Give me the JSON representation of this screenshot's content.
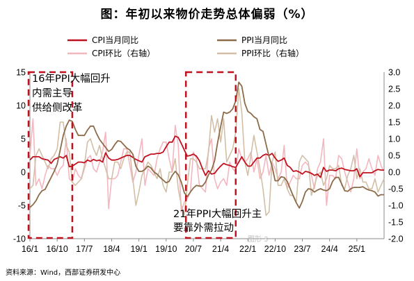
{
  "title": "图：年初以来物价走势总体偏弱（%）",
  "source": "资料来源：Wind，西部证券研发中心",
  "watermark": "图形 3",
  "chart_data": {
    "type": "line",
    "x_labels": [
      "16/1",
      "16/10",
      "17/7",
      "18/4",
      "19/1",
      "19/10",
      "20/7",
      "21/4",
      "22/1",
      "22/10",
      "23/7",
      "24/4",
      "25/1"
    ],
    "x_start": "2016-01",
    "y_left": {
      "ticks": [
        "15",
        "10",
        "5",
        "0",
        "-5",
        "-10"
      ],
      "range": [
        -10,
        15
      ]
    },
    "y_right": {
      "ticks": [
        "3.0",
        "2.5",
        "2.0",
        "1.5",
        "1.0",
        "0.5",
        "0.0",
        "-0.5",
        "-1.0",
        "-1.5",
        "-2.0"
      ],
      "range": [
        -2.0,
        3.0
      ]
    },
    "series": [
      {
        "name": "CPI当月同比",
        "axis": "left",
        "color": "#c0111f",
        "width": 1.8,
        "values": [
          1.8,
          2.3,
          2.3,
          2.3,
          2.0,
          1.9,
          1.8,
          1.3,
          1.9,
          2.1,
          2.3,
          2.1,
          2.5,
          0.8,
          0.9,
          1.2,
          1.5,
          1.5,
          1.4,
          1.8,
          1.6,
          1.9,
          1.7,
          1.8,
          1.5,
          2.9,
          2.1,
          1.8,
          1.8,
          1.9,
          2.1,
          2.3,
          2.5,
          2.5,
          2.2,
          1.9,
          1.7,
          1.5,
          2.3,
          2.5,
          2.7,
          2.7,
          2.8,
          2.8,
          3.0,
          3.8,
          4.5,
          4.5,
          5.4,
          5.2,
          4.3,
          3.3,
          2.4,
          2.5,
          2.7,
          2.4,
          1.7,
          0.5,
          -0.5,
          0.2,
          -0.3,
          -0.2,
          0.4,
          0.9,
          1.3,
          1.1,
          1.0,
          0.8,
          0.7,
          1.5,
          2.3,
          1.5,
          0.9,
          0.9,
          1.5,
          2.1,
          2.1,
          2.5,
          2.7,
          2.5,
          2.8,
          2.1,
          1.6,
          1.8,
          2.1,
          1.0,
          0.7,
          0.1,
          0.2,
          0.0,
          -0.3,
          0.1,
          0.0,
          -0.2,
          -0.5,
          -0.3,
          -0.8,
          0.7,
          0.1,
          0.3,
          0.3,
          0.2,
          0.5,
          0.6,
          0.4,
          0.3,
          0.2,
          0.2,
          0.5,
          -0.7,
          -0.1,
          -0.1,
          -0.1,
          -0.1,
          0.2,
          0.4,
          0.3,
          0.3
        ]
      },
      {
        "name": "PPI当月同比",
        "axis": "left",
        "color": "#8c6b48",
        "width": 1.8,
        "values": [
          -5.3,
          -4.9,
          -4.3,
          -3.4,
          -2.8,
          -2.6,
          -1.7,
          -0.8,
          0.1,
          1.2,
          3.3,
          5.5,
          6.9,
          7.8,
          7.6,
          6.4,
          5.5,
          5.5,
          5.5,
          6.3,
          6.9,
          6.9,
          5.8,
          4.9,
          4.3,
          3.7,
          3.1,
          3.4,
          4.1,
          4.7,
          4.6,
          4.1,
          3.6,
          3.3,
          2.7,
          0.9,
          0.1,
          0.1,
          0.4,
          0.9,
          0.6,
          0.0,
          -0.3,
          -0.8,
          -1.2,
          -1.6,
          -1.4,
          -0.5,
          0.1,
          -0.4,
          -1.5,
          -3.1,
          -3.7,
          -3.0,
          -2.4,
          -2.0,
          -2.1,
          -2.1,
          -1.5,
          -0.4,
          0.3,
          1.7,
          4.4,
          6.8,
          9.0,
          8.8,
          9.0,
          9.5,
          10.7,
          13.5,
          12.9,
          10.3,
          9.1,
          8.8,
          8.3,
          8.0,
          6.4,
          6.1,
          4.2,
          2.3,
          0.9,
          -1.3,
          -1.3,
          -0.7,
          -0.8,
          -1.4,
          -2.5,
          -3.6,
          -4.6,
          -5.4,
          -4.4,
          -3.0,
          -2.5,
          -2.6,
          -3.0,
          -2.7,
          -2.5,
          -2.7,
          -2.8,
          -2.5,
          -1.4,
          -0.8,
          -0.8,
          -1.8,
          -2.8,
          -2.9,
          -2.5,
          -2.3,
          -2.3,
          -2.3,
          -2.2,
          -2.5,
          -2.7,
          -2.8,
          -3.0,
          -3.6,
          -3.4,
          -3.4
        ]
      },
      {
        "name": "CPI环比（右轴）",
        "axis": "right",
        "color": "#f4b6bf",
        "width": 1.6,
        "values": [
          0.5,
          1.6,
          -0.4,
          -0.2,
          -0.5,
          -0.1,
          0.2,
          0.1,
          0.1,
          -0.1,
          0.1,
          0.2,
          1.0,
          -0.2,
          -0.3,
          0.1,
          -0.1,
          -0.2,
          0.1,
          0.4,
          0.5,
          0.1,
          0.0,
          0.3,
          0.6,
          1.2,
          -1.1,
          -0.2,
          -0.2,
          -0.1,
          0.3,
          0.7,
          0.7,
          0.2,
          -0.3,
          0.0,
          0.5,
          1.0,
          -0.4,
          0.1,
          0.0,
          -0.1,
          0.4,
          0.7,
          0.9,
          0.9,
          0.4,
          0.0,
          1.4,
          0.8,
          -1.2,
          -0.9,
          -0.8,
          -0.6,
          0.6,
          0.4,
          -0.4,
          -0.5,
          -0.6,
          0.7,
          1.0,
          -0.2,
          -0.5,
          -0.3,
          -0.2,
          -0.4,
          0.3,
          0.1,
          0.0,
          0.7,
          0.4,
          0.3,
          0.4,
          0.6,
          0.0,
          0.4,
          -0.2,
          0.0,
          0.5,
          -0.1,
          0.3,
          0.1,
          -0.2,
          0.0,
          0.8,
          -0.5,
          -0.3,
          -0.1,
          -0.2,
          -0.2,
          0.2,
          0.3,
          0.2,
          -0.1,
          -0.5,
          0.1,
          0.3,
          1.0,
          -1.0,
          -0.1,
          -0.1,
          -0.2,
          0.5,
          0.4,
          0.0,
          -0.3,
          -0.6,
          -0.2,
          0.7,
          -0.2,
          0.0,
          0.1,
          0.4,
          0.1,
          -0.1,
          0.5,
          0.2,
          0.0
        ]
      },
      {
        "name": "PPI环比（右轴）",
        "axis": "right",
        "color": "#d2bfa6",
        "width": 1.6,
        "values": [
          -0.5,
          -0.4,
          0.5,
          0.7,
          0.5,
          0.3,
          0.1,
          0.4,
          0.5,
          0.7,
          1.5,
          1.5,
          0.8,
          0.6,
          -0.3,
          -0.4,
          -0.3,
          -0.2,
          0.2,
          0.9,
          1.0,
          0.7,
          0.5,
          0.8,
          0.4,
          0.1,
          -0.2,
          -0.2,
          0.3,
          0.3,
          0.1,
          0.4,
          0.6,
          0.6,
          -0.2,
          -1.0,
          -0.6,
          -0.1,
          0.1,
          0.3,
          0.2,
          0.0,
          -0.2,
          0.1,
          -0.4,
          -0.6,
          0.0,
          0.0,
          0.4,
          -0.5,
          -1.0,
          -1.3,
          -0.4,
          0.4,
          0.4,
          0.3,
          0.1,
          0.1,
          0.1,
          0.6,
          1.7,
          1.2,
          1.6,
          0.9,
          1.6,
          0.3,
          0.5,
          0.7,
          1.2,
          2.5,
          1.8,
          0.3,
          -0.1,
          0.5,
          1.1,
          0.6,
          0.1,
          -0.5,
          -1.3,
          -1.2,
          0.3,
          0.6,
          -0.4,
          -0.4,
          -0.2,
          -0.5,
          -0.7,
          -0.7,
          -0.9,
          0.3,
          0.5,
          0.4,
          0.3,
          -0.7,
          -0.4,
          -0.1,
          0.0,
          -0.4,
          -0.2,
          0.2,
          0.1,
          0.1,
          0.2,
          -0.4,
          -0.5,
          -0.1,
          0.1,
          0.5,
          -0.2,
          0.1,
          -0.3,
          -0.3,
          -0.5,
          -0.5,
          -0.2,
          -0.6,
          -0.4,
          -0.2
        ]
      }
    ],
    "annotations": [
      {
        "lines": [
          "16年PPI大幅回升",
          "内需主导",
          "供给侧改革"
        ],
        "box_months": [
          0,
          14
        ]
      },
      {
        "lines": [
          "21年PPI大幅回升主",
          "要靠外需拉动"
        ],
        "box_months": [
          52,
          68
        ]
      }
    ],
    "legend_position": "top",
    "grid": false
  }
}
